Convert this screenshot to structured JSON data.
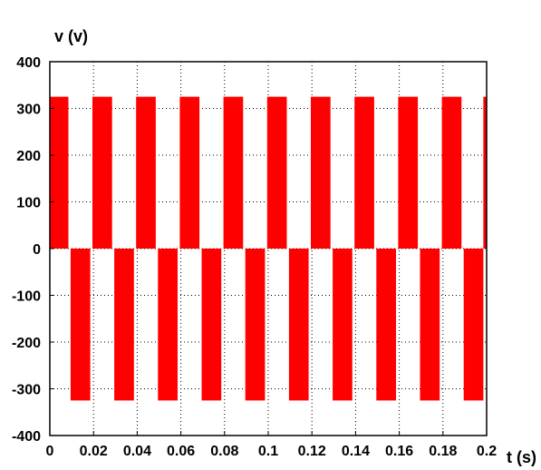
{
  "chart_data": {
    "type": "line",
    "title": "",
    "xlabel": "t (s)",
    "ylabel": "v (v)",
    "xlim": [
      0,
      0.2
    ],
    "ylim": [
      -400,
      400
    ],
    "x_ticks": [
      0,
      0.02,
      0.04,
      0.06,
      0.08,
      0.1,
      0.12,
      0.14,
      0.16,
      0.18,
      0.2
    ],
    "x_tick_labels": [
      "0",
      "0.02",
      "0.04",
      "0.06",
      "0.08",
      "0.1",
      "0.12",
      "0.14",
      "0.16",
      "0.18",
      "0.2"
    ],
    "y_ticks": [
      400,
      300,
      200,
      100,
      0,
      -100,
      -200,
      -300,
      -400
    ],
    "y_tick_labels": [
      "400",
      "300",
      "200",
      "100",
      "0",
      "-100",
      "-200",
      "-300",
      "-400"
    ],
    "grid": true,
    "grid_style": "dotted",
    "legend": "none",
    "series": [
      {
        "color": "#ff0000",
        "waveform": "square-pwm",
        "period": 0.02,
        "amplitude_positive": 325,
        "amplitude_negative": -325,
        "positive_pulses": [
          [
            0.0,
            0.0085
          ],
          [
            0.0195,
            0.0285
          ],
          [
            0.0395,
            0.0485
          ],
          [
            0.0595,
            0.0685
          ],
          [
            0.0795,
            0.0885
          ],
          [
            0.0995,
            0.1085
          ],
          [
            0.1195,
            0.1285
          ],
          [
            0.1395,
            0.1485
          ],
          [
            0.1595,
            0.1685
          ],
          [
            0.1795,
            0.1885
          ],
          [
            0.1985,
            0.2
          ]
        ],
        "negative_pulses": [
          [
            0.0095,
            0.0185
          ],
          [
            0.0295,
            0.0385
          ],
          [
            0.0495,
            0.0585
          ],
          [
            0.0695,
            0.0785
          ],
          [
            0.0895,
            0.0985
          ],
          [
            0.1095,
            0.1185
          ],
          [
            0.1295,
            0.1385
          ],
          [
            0.1495,
            0.1585
          ],
          [
            0.1695,
            0.1785
          ],
          [
            0.1895,
            0.1985
          ]
        ]
      }
    ]
  }
}
